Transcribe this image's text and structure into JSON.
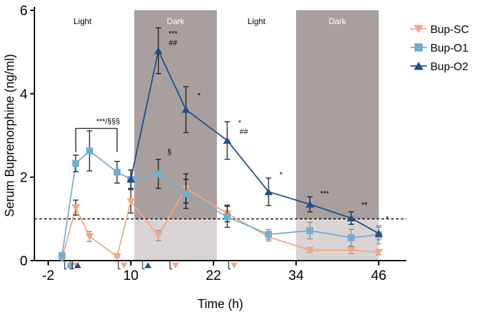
{
  "chart_data": {
    "type": "line",
    "title": "",
    "xlabel": "Time (h)",
    "ylabel": "Serum  Buprenorphine (ng/ml)",
    "xlim": [
      -4,
      50
    ],
    "ylim": [
      0,
      6
    ],
    "xticks": [
      -2,
      10,
      22,
      34,
      46
    ],
    "yticks": [
      0,
      2,
      4,
      6
    ],
    "threshold": 1.0,
    "bands": [
      {
        "label": "Light",
        "x0": -4,
        "x1": 10.5,
        "shaded": false
      },
      {
        "label": "Dark",
        "x0": 10.5,
        "x1": 22.5,
        "shaded": true
      },
      {
        "label": "Light",
        "x0": 22.5,
        "x1": 34,
        "shaded": false
      },
      {
        "label": "Dark",
        "x0": 34,
        "x1": 46,
        "shaded": true
      }
    ],
    "series": [
      {
        "name": "Bup-SC",
        "color": "#f4a582",
        "marker": "triangle-down",
        "points": [
          {
            "x": 0,
            "y": 0.05,
            "err": 0.03
          },
          {
            "x": 2,
            "y": 1.27,
            "err": 0.18
          },
          {
            "x": 4,
            "y": 0.58,
            "err": 0.12
          },
          {
            "x": 8,
            "y": 0.1,
            "err": 0.02
          },
          {
            "x": 10,
            "y": 1.42,
            "err": 0.28
          },
          {
            "x": 14,
            "y": 0.6,
            "err": 0.12
          },
          {
            "x": 18,
            "y": 1.73,
            "err": 0.35
          },
          {
            "x": 24,
            "y": 1.13,
            "err": 0.2
          },
          {
            "x": 30,
            "y": 0.57,
            "err": 0.1
          },
          {
            "x": 36,
            "y": 0.25,
            "err": 0.05
          },
          {
            "x": 42,
            "y": 0.25,
            "err": 0.08
          },
          {
            "x": 46,
            "y": 0.2,
            "err": 0.06
          }
        ]
      },
      {
        "name": "Bup-O1",
        "color": "#74acd0",
        "marker": "square",
        "points": [
          {
            "x": 0,
            "y": 0.12,
            "err": 0.04
          },
          {
            "x": 2,
            "y": 2.33,
            "err": 0.2
          },
          {
            "x": 4,
            "y": 2.63,
            "err": 0.48
          },
          {
            "x": 8,
            "y": 2.12,
            "err": 0.26
          },
          {
            "x": 10,
            "y": 1.95,
            "err": 0.22
          },
          {
            "x": 14,
            "y": 2.08,
            "err": 0.35
          },
          {
            "x": 18,
            "y": 1.6,
            "err": 0.35
          },
          {
            "x": 24,
            "y": 1.05,
            "err": 0.25
          },
          {
            "x": 30,
            "y": 0.63,
            "err": 0.12
          },
          {
            "x": 36,
            "y": 0.72,
            "err": 0.2
          },
          {
            "x": 42,
            "y": 0.55,
            "err": 0.2
          },
          {
            "x": 46,
            "y": 0.62,
            "err": 0.22
          }
        ]
      },
      {
        "name": "Bup-O2",
        "color": "#1f4e8c",
        "marker": "triangle-up",
        "points": [
          {
            "x": 10,
            "y": 1.95,
            "err": 0.22
          },
          {
            "x": 14,
            "y": 5.03,
            "err": 0.55
          },
          {
            "x": 18,
            "y": 3.62,
            "err": 0.55
          },
          {
            "x": 24,
            "y": 2.88,
            "err": 0.45
          },
          {
            "x": 30,
            "y": 1.65,
            "err": 0.33
          },
          {
            "x": 36,
            "y": 1.35,
            "err": 0.18
          },
          {
            "x": 42,
            "y": 1.02,
            "err": 0.15
          },
          {
            "x": 46,
            "y": 0.65,
            "err": 0.15
          }
        ]
      }
    ],
    "annotations": [
      {
        "text": "***",
        "x": 15.5,
        "y": 5.38
      },
      {
        "text": "##",
        "x": 15.5,
        "y": 5.16
      },
      {
        "text": "*",
        "x": 19.7,
        "y": 3.9
      },
      {
        "text": "§",
        "x": 15.3,
        "y": 2.55
      },
      {
        "text": "*",
        "x": 25.6,
        "y": 3.25
      },
      {
        "text": "##",
        "x": 25.8,
        "y": 3.03
      },
      {
        "text": "*",
        "x": 31.6,
        "y": 2.0
      },
      {
        "text": "***",
        "x": 37.5,
        "y": 1.55
      },
      {
        "text": "**",
        "x": 43.5,
        "y": 1.28
      },
      {
        "text": "*",
        "x": 47.0,
        "y": 0.95
      },
      {
        "text": "***/§§§",
        "x": 5.0,
        "y": 3.28
      }
    ],
    "bracket": {
      "x0": 2,
      "x1": 8,
      "y": 3.17,
      "y_drop": 2.6
    },
    "dose_markers": [
      {
        "series": "Bup-SC",
        "x": 2
      },
      {
        "series": "Bup-O1",
        "x": 1.2
      },
      {
        "series": "Bup-O2",
        "x": 2.3
      },
      {
        "series": "Bup-SC",
        "x": 9
      },
      {
        "series": "Bup-O2",
        "x": 12.5
      },
      {
        "series": "Bup-SC",
        "x": 16.5
      },
      {
        "series": "Bup-SC",
        "x": 25
      }
    ],
    "legend_position": "top-right"
  }
}
